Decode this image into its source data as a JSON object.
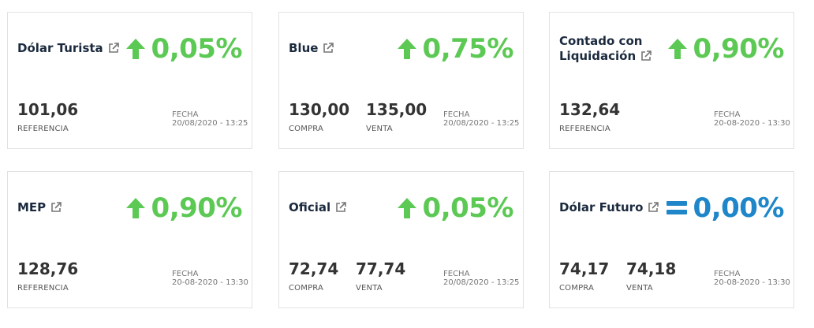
{
  "icons": {
    "external": "external-link-icon",
    "up": "arrow-up-icon",
    "equal": "equals-icon"
  },
  "colors": {
    "up": "#5cc954",
    "equal": "#1e86c9",
    "title": "#1b2a3e"
  },
  "cards": [
    {
      "title": "Dólar Turista",
      "trend": "up",
      "change": "0,05%",
      "values": [
        {
          "value": "101,06",
          "label": "REFERENCIA"
        }
      ],
      "date_label": "FECHA",
      "date": "20/08/2020 - 13:25"
    },
    {
      "title": "Blue",
      "trend": "up",
      "change": "0,75%",
      "values": [
        {
          "value": "130,00",
          "label": "COMPRA"
        },
        {
          "value": "135,00",
          "label": "VENTA"
        }
      ],
      "date_label": "FECHA",
      "date": "20/08/2020 - 13:25"
    },
    {
      "title_line1": "Contado con",
      "title_line2": "Liquidación",
      "trend": "up",
      "change": "0,90%",
      "values": [
        {
          "value": "132,64",
          "label": "REFERENCIA"
        }
      ],
      "date_label": "FECHA",
      "date": "20-08-2020 - 13:30"
    },
    {
      "title": "MEP",
      "trend": "up",
      "change": "0,90%",
      "values": [
        {
          "value": "128,76",
          "label": "REFERENCIA"
        }
      ],
      "date_label": "FECHA",
      "date": "20-08-2020 - 13:30"
    },
    {
      "title": "Oficial",
      "trend": "up",
      "change": "0,05%",
      "values": [
        {
          "value": "72,74",
          "label": "COMPRA"
        },
        {
          "value": "77,74",
          "label": "VENTA"
        }
      ],
      "date_label": "FECHA",
      "date": "20/08/2020 - 13:25"
    },
    {
      "title": "Dólar Futuro",
      "trend": "equal",
      "change": "0,00%",
      "values": [
        {
          "value": "74,17",
          "label": "COMPRA"
        },
        {
          "value": "74,18",
          "label": "VENTA"
        }
      ],
      "date_label": "FECHA",
      "date": "20-08-2020 - 13:30"
    }
  ]
}
